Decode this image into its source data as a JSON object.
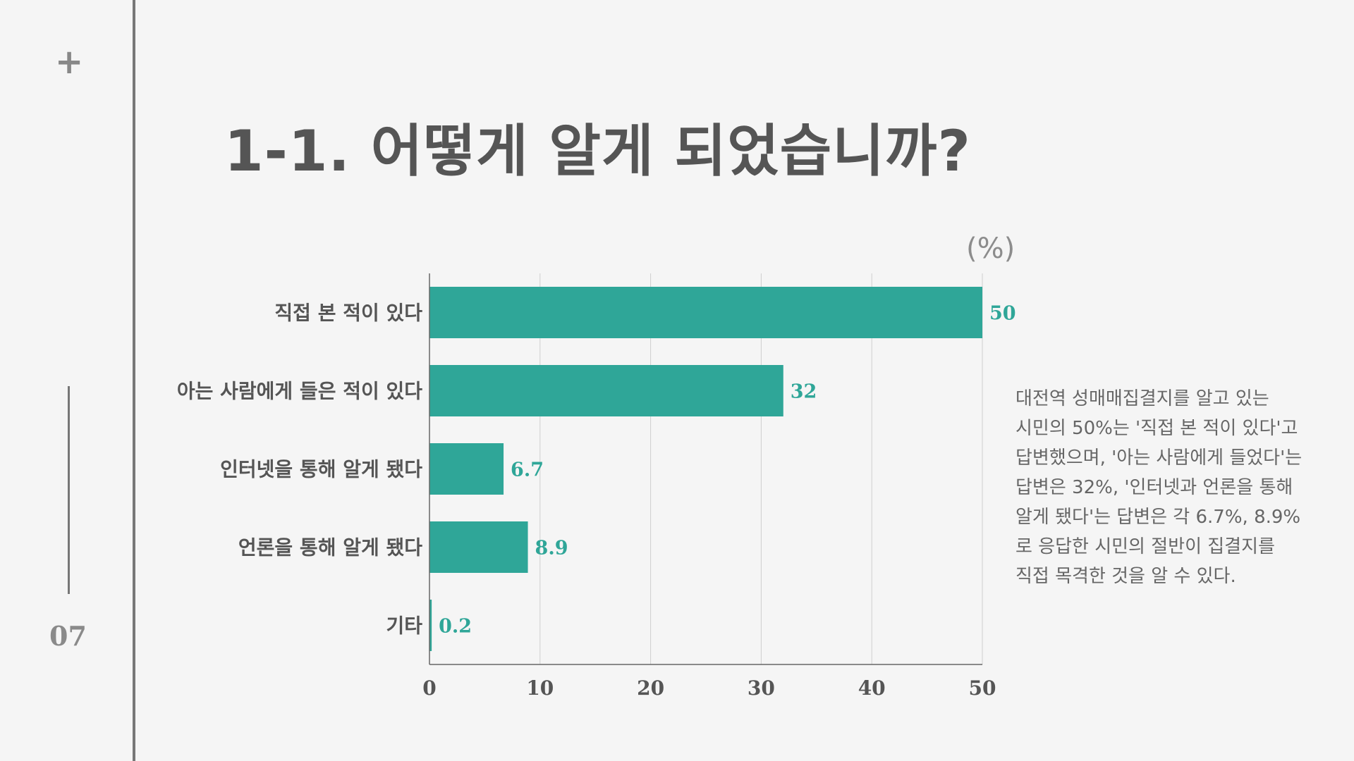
{
  "slide": {
    "page_number": "07",
    "plus_glyph": "+",
    "title": "1-1. 어떻게 알게 되었습니까?",
    "unit": "(%)",
    "description": "대전역 성매매집결지를 알고 있는 시민의 50%는 '직접 본 적이 있다'고 답변했으며, '아는 사람에게 들었다'는 답변은 32%, '인터넷과 언론을 통해 알게 됐다'는 답변은 각 6.7%, 8.9%로 응답한 시민의 절반이 집결지를 직접 목격한 것을 알 수 있다."
  },
  "colors": {
    "bar": "#2fa698",
    "value_label": "#2fa698",
    "text": "#555555",
    "grid": "#cfcfcf"
  },
  "chart_data": {
    "type": "bar",
    "orientation": "horizontal",
    "categories": [
      "직접 본 적이 있다",
      "아는 사람에게 들은 적이 있다",
      "인터넷을 통해 알게 됐다",
      "언론을 통해 알게 됐다",
      "기타"
    ],
    "values": [
      50,
      32,
      6.7,
      8.9,
      0.2
    ],
    "value_labels": [
      "50",
      "32",
      "6.7",
      "8.9",
      "0.2"
    ],
    "xlim": [
      0,
      50
    ],
    "xticks": [
      0,
      10,
      20,
      30,
      40,
      50
    ],
    "xtick_labels": [
      "0",
      "10",
      "20",
      "30",
      "40",
      "50"
    ],
    "grid": true,
    "unit": "(%)"
  }
}
